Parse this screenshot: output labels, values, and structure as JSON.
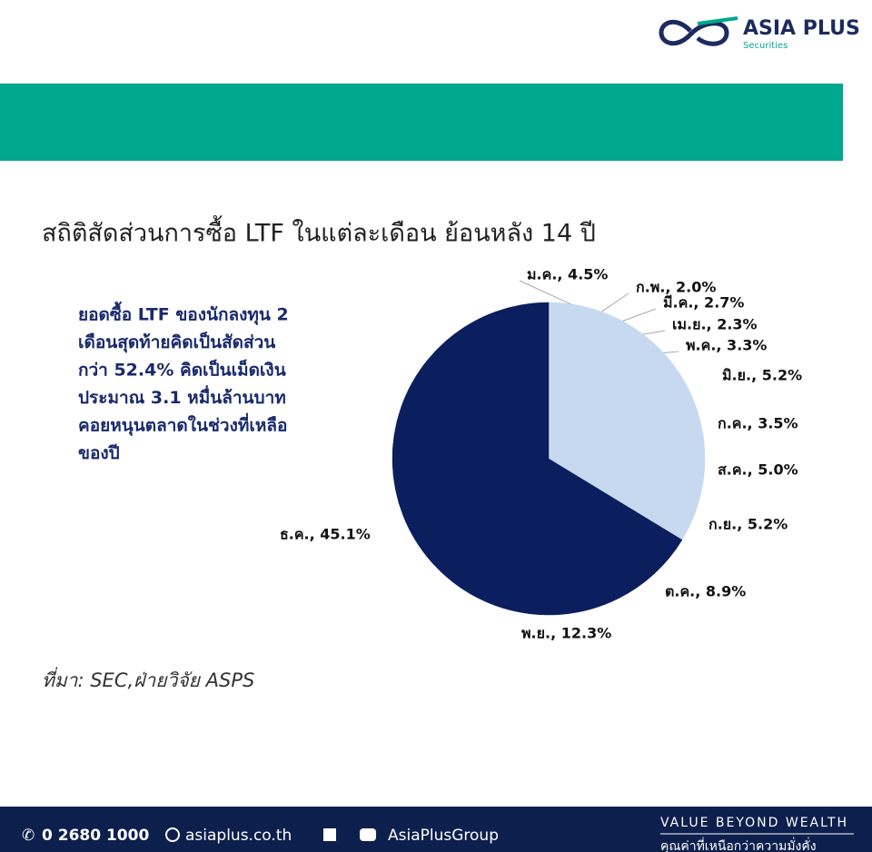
{
  "brand": {
    "name": "ASIA PLUS",
    "sub": "Securities"
  },
  "chart_data": {
    "type": "pie",
    "title": "สถิติสัดส่วนการซื้อ LTF ในแต่ละเดือน ย้อนหลัง 14 ปี",
    "annotation": [
      "ยอดซื้อ LTF ของนักลงทุน 2",
      "เดือนสุดท้ายคิดเป็นสัดส่วน",
      "กว่า 52.4% คิดเป็นเม็ดเงิน",
      "ประมาณ 3.1 หมื่นล้านบาท",
      "คอยหนุนตลาดในช่วงที่เหลือ",
      "ของปี"
    ],
    "values": [
      4.5,
      2.0,
      2.7,
      2.3,
      3.3,
      5.2,
      3.5,
      5.0,
      5.2,
      8.9,
      12.3,
      45.1
    ],
    "value_labels": [
      "ม.ค., 4.5%",
      "ก.พ., 2.0%",
      "มี.ค., 2.7%",
      "เม.ย., 2.3%",
      "พ.ค., 3.3%",
      "มิ.ย., 5.2%",
      "ก.ค., 3.5%",
      "ส.ค., 5.0%",
      "ก.ย., 5.2%",
      "ต.ค., 8.9%",
      "พ.ย., 12.3%",
      "ธ.ค., 45.1%"
    ],
    "colors": [
      "#c6d9ef",
      "#c6d9ef",
      "#c6d9ef",
      "#c6d9ef",
      "#c6d9ef",
      "#c6d9ef",
      "#c6d9ef",
      "#c6d9ef",
      "#c6d9ef",
      "#0b1f5e",
      "#0b1f5e",
      "#0b1f5e"
    ],
    "source": "ที่มา: SEC,ฝ่ายวิจัย ASPS"
  },
  "footer": {
    "phone": "0 2680 1000",
    "web": "asiaplus.co.th",
    "social": "AsiaPlusGroup",
    "slogan": "VALUE BEYOND WEALTH",
    "slogan_th": "คุณค่าที่เหนือกว่าความมั่งคั่ง"
  }
}
